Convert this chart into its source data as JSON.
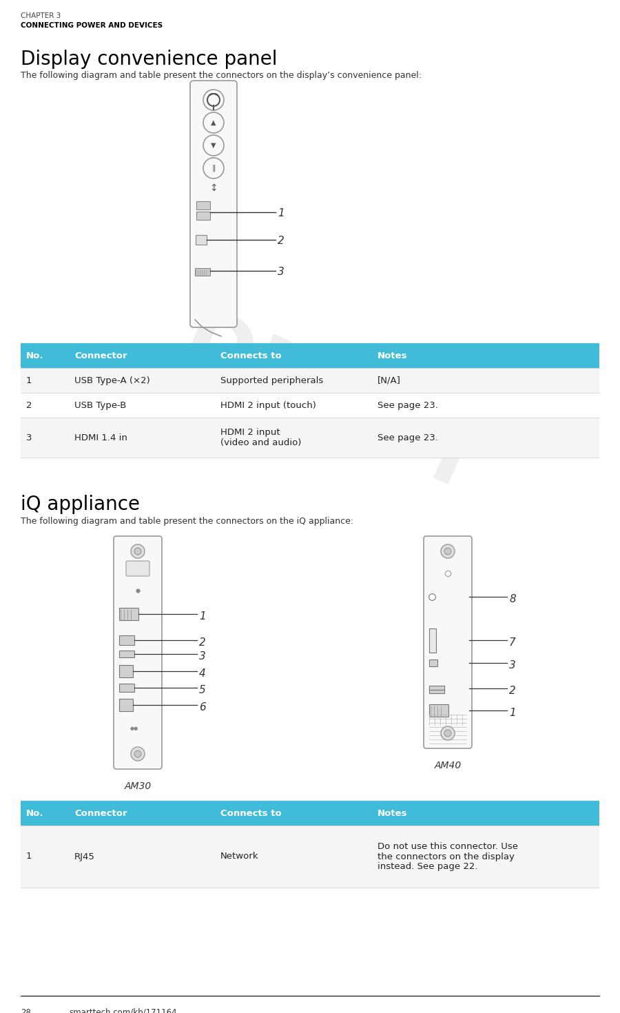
{
  "bg_color": "#ffffff",
  "header_chapter": "CHAPTER 3",
  "header_title": "CONNECTING POWER AND DEVICES",
  "section1_title": "Display convenience panel",
  "section1_desc": "The following diagram and table present the connectors on the display’s convenience panel:",
  "table1_header": [
    "No.",
    "Connector",
    "Connects to",
    "Notes"
  ],
  "table1_rows": [
    [
      "1",
      "USB Type-A (×2)",
      "Supported peripherals",
      "[N/A]"
    ],
    [
      "2",
      "USB Type-B",
      "HDMI 2 input (touch)",
      "See page 23."
    ],
    [
      "3",
      "HDMI 1.4 in",
      "HDMI 2 input\n(video and audio)",
      "See page 23."
    ]
  ],
  "section2_title": "iQ appliance",
  "section2_desc": "The following diagram and table present the connectors on the iQ appliance:",
  "am30_label": "AM30",
  "am40_label": "AM40",
  "table2_header": [
    "No.",
    "Connector",
    "Connects to",
    "Notes"
  ],
  "table2_rows": [
    [
      "1",
      "RJ45",
      "Network",
      "Do not use this connector. Use\nthe connectors on the display\ninstead. See page 22."
    ]
  ],
  "footer_page": "28",
  "footer_url": "smarttech.com/kb/171164",
  "table_header_bg": "#40bcd8",
  "table_header_fg": "#ffffff",
  "table_border_color": "#cccccc",
  "diagram_outline": "#999999",
  "diagram_fill": "#f8f8f8",
  "watermark_color": "#e0e0e0"
}
